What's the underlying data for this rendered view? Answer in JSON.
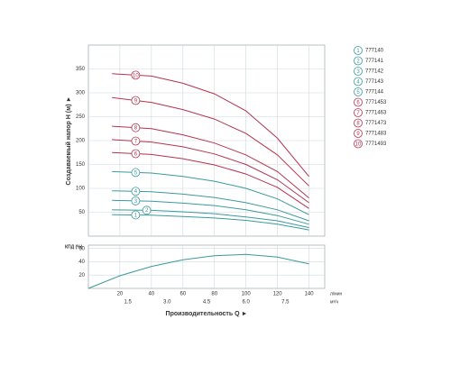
{
  "chart_data": [
    {
      "type": "line",
      "ylabel": "Создаваемый напор H (м) ►",
      "x": [
        15,
        40,
        60,
        80,
        100,
        120,
        140
      ],
      "xlim": [
        0,
        150
      ],
      "xticks": [
        20,
        40,
        60,
        80,
        100,
        120,
        140
      ],
      "ylim": [
        0,
        400
      ],
      "yticks": [
        50,
        100,
        150,
        200,
        250,
        300,
        350
      ],
      "grid": true,
      "legend": "right",
      "series": [
        {
          "label": "1",
          "name": "777140",
          "color": "#3a9a9e",
          "values": [
            45,
            44,
            41,
            38,
            33,
            25,
            13
          ]
        },
        {
          "label": "2",
          "name": "777141",
          "color": "#3a9a9e",
          "values": [
            55,
            54,
            51,
            47,
            40,
            32,
            18
          ]
        },
        {
          "label": "3",
          "name": "777142",
          "color": "#3a9a9e",
          "values": [
            75,
            73,
            69,
            64,
            55,
            43,
            25
          ]
        },
        {
          "label": "4",
          "name": "777143",
          "color": "#3a9a9e",
          "values": [
            95,
            93,
            88,
            81,
            70,
            55,
            32
          ]
        },
        {
          "label": "5",
          "name": "777144",
          "color": "#3a9a9e",
          "values": [
            135,
            132,
            125,
            115,
            100,
            78,
            45
          ]
        },
        {
          "label": "6",
          "name": "7771453",
          "color": "#b5334f",
          "values": [
            175,
            171,
            162,
            149,
            130,
            102,
            58
          ]
        },
        {
          "label": "7",
          "name": "7771463",
          "color": "#b5334f",
          "values": [
            202,
            197,
            187,
            172,
            150,
            118,
            70
          ]
        },
        {
          "label": "8",
          "name": "7771473",
          "color": "#b5334f",
          "values": [
            230,
            225,
            212,
            195,
            170,
            135,
            80
          ]
        },
        {
          "label": "9",
          "name": "7771483",
          "color": "#b5334f",
          "values": [
            290,
            280,
            265,
            245,
            215,
            170,
            105
          ]
        },
        {
          "label": "10",
          "name": "7771493",
          "color": "#b5334f",
          "values": [
            340,
            335,
            320,
            298,
            262,
            205,
            125
          ]
        }
      ]
    },
    {
      "type": "line",
      "ylabel": "КПД (%)",
      "xlabel": "Производительность Q ►",
      "xunit": "л/мин",
      "x2unit": "м³/ч",
      "x": [
        0,
        20,
        40,
        60,
        80,
        100,
        120,
        140
      ],
      "xlim": [
        0,
        150
      ],
      "xticks": [
        20,
        40,
        60,
        80,
        100,
        120,
        140
      ],
      "x2lim": [
        0,
        9
      ],
      "x2ticks": [
        1.5,
        {
          "value": 3,
          "label": "3.0"
        },
        4.5,
        {
          "value": 6,
          "label": "6.0"
        },
        7.5
      ],
      "ylim": [
        0,
        65
      ],
      "yticks": [
        20,
        40,
        60
      ],
      "grid": true,
      "series": [
        {
          "color": "#3a9a9e",
          "values": [
            0,
            19,
            33,
            43,
            49,
            51,
            47,
            37
          ]
        }
      ]
    }
  ]
}
